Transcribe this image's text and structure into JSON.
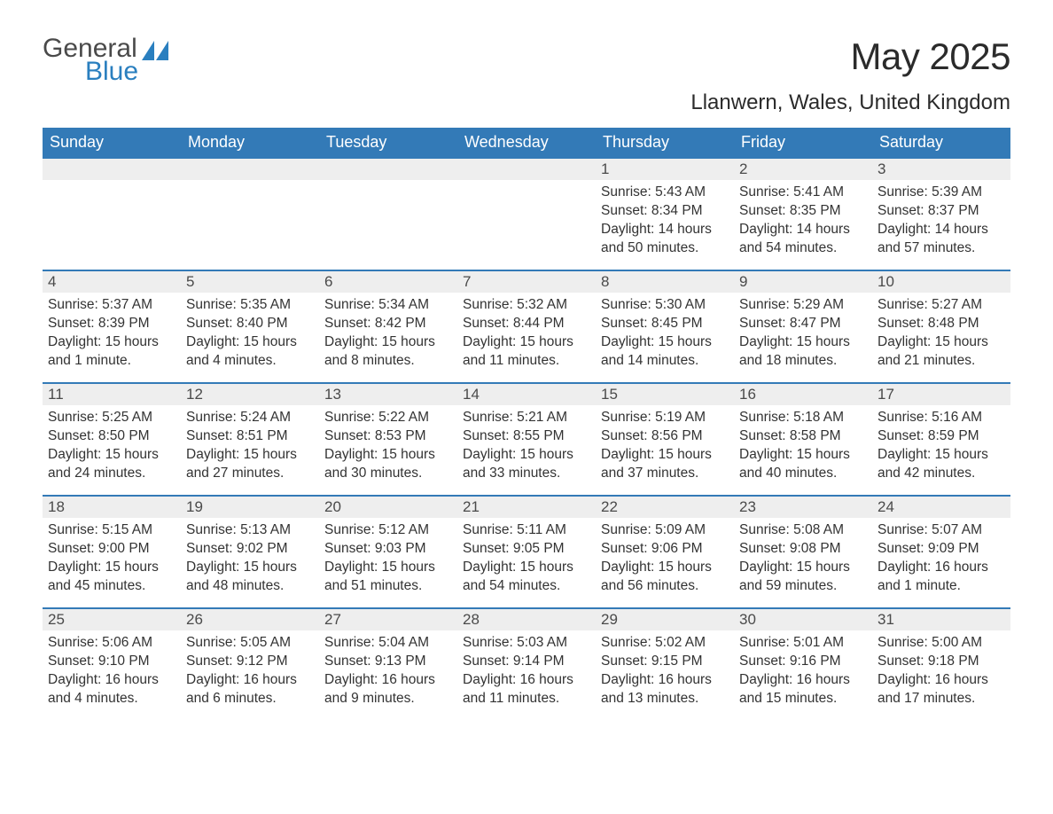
{
  "logo": {
    "general": "General",
    "blue": "Blue",
    "accent_color": "#2a7fbf",
    "header_bg": "#337ab7"
  },
  "title": "May 2025",
  "location": "Llanwern, Wales, United Kingdom",
  "dow": [
    "Sunday",
    "Monday",
    "Tuesday",
    "Wednesday",
    "Thursday",
    "Friday",
    "Saturday"
  ],
  "labels": {
    "sunrise": "Sunrise: ",
    "sunset": "Sunset: ",
    "daylight": "Daylight: "
  },
  "weeks": [
    [
      {
        "n": "",
        "empty": true
      },
      {
        "n": "",
        "empty": true
      },
      {
        "n": "",
        "empty": true
      },
      {
        "n": "",
        "empty": true
      },
      {
        "n": "1",
        "sr": "5:43 AM",
        "ss": "8:34 PM",
        "dl": "14 hours and 50 minutes."
      },
      {
        "n": "2",
        "sr": "5:41 AM",
        "ss": "8:35 PM",
        "dl": "14 hours and 54 minutes."
      },
      {
        "n": "3",
        "sr": "5:39 AM",
        "ss": "8:37 PM",
        "dl": "14 hours and 57 minutes."
      }
    ],
    [
      {
        "n": "4",
        "sr": "5:37 AM",
        "ss": "8:39 PM",
        "dl": "15 hours and 1 minute."
      },
      {
        "n": "5",
        "sr": "5:35 AM",
        "ss": "8:40 PM",
        "dl": "15 hours and 4 minutes."
      },
      {
        "n": "6",
        "sr": "5:34 AM",
        "ss": "8:42 PM",
        "dl": "15 hours and 8 minutes."
      },
      {
        "n": "7",
        "sr": "5:32 AM",
        "ss": "8:44 PM",
        "dl": "15 hours and 11 minutes."
      },
      {
        "n": "8",
        "sr": "5:30 AM",
        "ss": "8:45 PM",
        "dl": "15 hours and 14 minutes."
      },
      {
        "n": "9",
        "sr": "5:29 AM",
        "ss": "8:47 PM",
        "dl": "15 hours and 18 minutes."
      },
      {
        "n": "10",
        "sr": "5:27 AM",
        "ss": "8:48 PM",
        "dl": "15 hours and 21 minutes."
      }
    ],
    [
      {
        "n": "11",
        "sr": "5:25 AM",
        "ss": "8:50 PM",
        "dl": "15 hours and 24 minutes."
      },
      {
        "n": "12",
        "sr": "5:24 AM",
        "ss": "8:51 PM",
        "dl": "15 hours and 27 minutes."
      },
      {
        "n": "13",
        "sr": "5:22 AM",
        "ss": "8:53 PM",
        "dl": "15 hours and 30 minutes."
      },
      {
        "n": "14",
        "sr": "5:21 AM",
        "ss": "8:55 PM",
        "dl": "15 hours and 33 minutes."
      },
      {
        "n": "15",
        "sr": "5:19 AM",
        "ss": "8:56 PM",
        "dl": "15 hours and 37 minutes."
      },
      {
        "n": "16",
        "sr": "5:18 AM",
        "ss": "8:58 PM",
        "dl": "15 hours and 40 minutes."
      },
      {
        "n": "17",
        "sr": "5:16 AM",
        "ss": "8:59 PM",
        "dl": "15 hours and 42 minutes."
      }
    ],
    [
      {
        "n": "18",
        "sr": "5:15 AM",
        "ss": "9:00 PM",
        "dl": "15 hours and 45 minutes."
      },
      {
        "n": "19",
        "sr": "5:13 AM",
        "ss": "9:02 PM",
        "dl": "15 hours and 48 minutes."
      },
      {
        "n": "20",
        "sr": "5:12 AM",
        "ss": "9:03 PM",
        "dl": "15 hours and 51 minutes."
      },
      {
        "n": "21",
        "sr": "5:11 AM",
        "ss": "9:05 PM",
        "dl": "15 hours and 54 minutes."
      },
      {
        "n": "22",
        "sr": "5:09 AM",
        "ss": "9:06 PM",
        "dl": "15 hours and 56 minutes."
      },
      {
        "n": "23",
        "sr": "5:08 AM",
        "ss": "9:08 PM",
        "dl": "15 hours and 59 minutes."
      },
      {
        "n": "24",
        "sr": "5:07 AM",
        "ss": "9:09 PM",
        "dl": "16 hours and 1 minute."
      }
    ],
    [
      {
        "n": "25",
        "sr": "5:06 AM",
        "ss": "9:10 PM",
        "dl": "16 hours and 4 minutes."
      },
      {
        "n": "26",
        "sr": "5:05 AM",
        "ss": "9:12 PM",
        "dl": "16 hours and 6 minutes."
      },
      {
        "n": "27",
        "sr": "5:04 AM",
        "ss": "9:13 PM",
        "dl": "16 hours and 9 minutes."
      },
      {
        "n": "28",
        "sr": "5:03 AM",
        "ss": "9:14 PM",
        "dl": "16 hours and 11 minutes."
      },
      {
        "n": "29",
        "sr": "5:02 AM",
        "ss": "9:15 PM",
        "dl": "16 hours and 13 minutes."
      },
      {
        "n": "30",
        "sr": "5:01 AM",
        "ss": "9:16 PM",
        "dl": "16 hours and 15 minutes."
      },
      {
        "n": "31",
        "sr": "5:00 AM",
        "ss": "9:18 PM",
        "dl": "16 hours and 17 minutes."
      }
    ]
  ]
}
